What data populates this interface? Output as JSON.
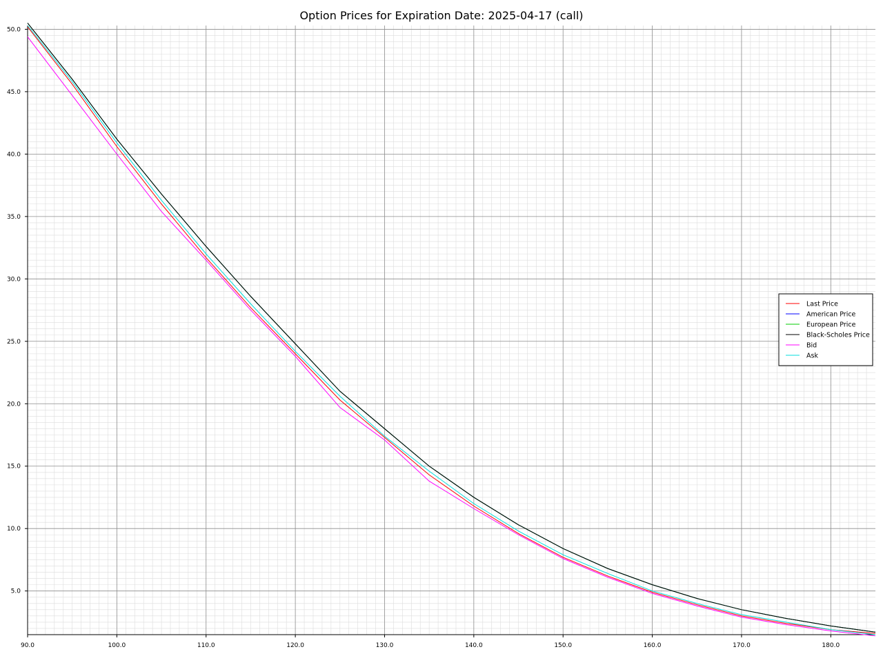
{
  "chart_data": {
    "type": "line",
    "title": "Option Prices for Expiration Date: 2025-04-17 (call)",
    "xlabel": "",
    "ylabel": "",
    "xlim": [
      90,
      185
    ],
    "ylim": [
      1.5,
      50.3
    ],
    "x_ticks": [
      90.0,
      100.0,
      110.0,
      120.0,
      130.0,
      140.0,
      150.0,
      160.0,
      170.0,
      180.0
    ],
    "y_ticks": [
      5.0,
      10.0,
      15.0,
      20.0,
      25.0,
      30.0,
      35.0,
      40.0,
      45.0,
      50.0
    ],
    "x_tick_labels": [
      "90.0",
      "100.0",
      "110.0",
      "120.0",
      "130.0",
      "140.0",
      "150.0",
      "160.0",
      "170.0",
      "180.0"
    ],
    "y_tick_labels": [
      "5.0",
      "10.0",
      "15.0",
      "20.0",
      "25.0",
      "30.0",
      "35.0",
      "40.0",
      "45.0",
      "50.0"
    ],
    "grid": true,
    "minor_grid": true,
    "legend_position": "right",
    "x": [
      90,
      95,
      100,
      105,
      110,
      115,
      120,
      125,
      130,
      135,
      140,
      145,
      150,
      155,
      160,
      165,
      170,
      175,
      180,
      185
    ],
    "series": [
      {
        "name": "Last Price",
        "color": "#ff0000",
        "values": [
          50.2,
          45.6,
          40.6,
          36.0,
          31.7,
          27.7,
          24.0,
          20.3,
          17.3,
          14.3,
          11.8,
          9.6,
          7.7,
          6.2,
          4.9,
          3.9,
          3.0,
          2.4,
          1.9,
          1.6
        ]
      },
      {
        "name": "American Price",
        "color": "#0000ff",
        "values": [
          50.5,
          46.0,
          41.2,
          36.8,
          32.6,
          28.6,
          24.8,
          21.0,
          18.0,
          15.0,
          12.5,
          10.3,
          8.4,
          6.8,
          5.5,
          4.4,
          3.5,
          2.8,
          2.2,
          1.7
        ]
      },
      {
        "name": "European Price",
        "color": "#00cc00",
        "values": [
          50.5,
          46.0,
          41.2,
          36.8,
          32.6,
          28.6,
          24.8,
          21.0,
          18.0,
          15.0,
          12.5,
          10.3,
          8.4,
          6.8,
          5.5,
          4.4,
          3.5,
          2.8,
          2.2,
          1.7
        ]
      },
      {
        "name": "Black-Scholes Price",
        "color": "#000000",
        "values": [
          50.5,
          46.0,
          41.2,
          36.8,
          32.6,
          28.6,
          24.8,
          21.0,
          18.0,
          15.0,
          12.5,
          10.3,
          8.4,
          6.8,
          5.5,
          4.4,
          3.5,
          2.8,
          2.2,
          1.7
        ]
      },
      {
        "name": "Bid",
        "color": "#ff00ff",
        "values": [
          49.4,
          44.7,
          40.0,
          35.4,
          31.5,
          27.5,
          23.8,
          19.7,
          17.1,
          13.8,
          11.6,
          9.5,
          7.6,
          6.1,
          4.8,
          3.8,
          2.9,
          2.3,
          1.8,
          1.4
        ]
      },
      {
        "name": "Ask",
        "color": "#00dddd",
        "values": [
          50.3,
          45.8,
          40.9,
          36.3,
          32.0,
          28.0,
          24.2,
          20.6,
          17.4,
          14.6,
          12.0,
          9.8,
          7.9,
          6.4,
          5.0,
          4.0,
          3.1,
          2.5,
          1.9,
          1.5
        ]
      }
    ]
  }
}
